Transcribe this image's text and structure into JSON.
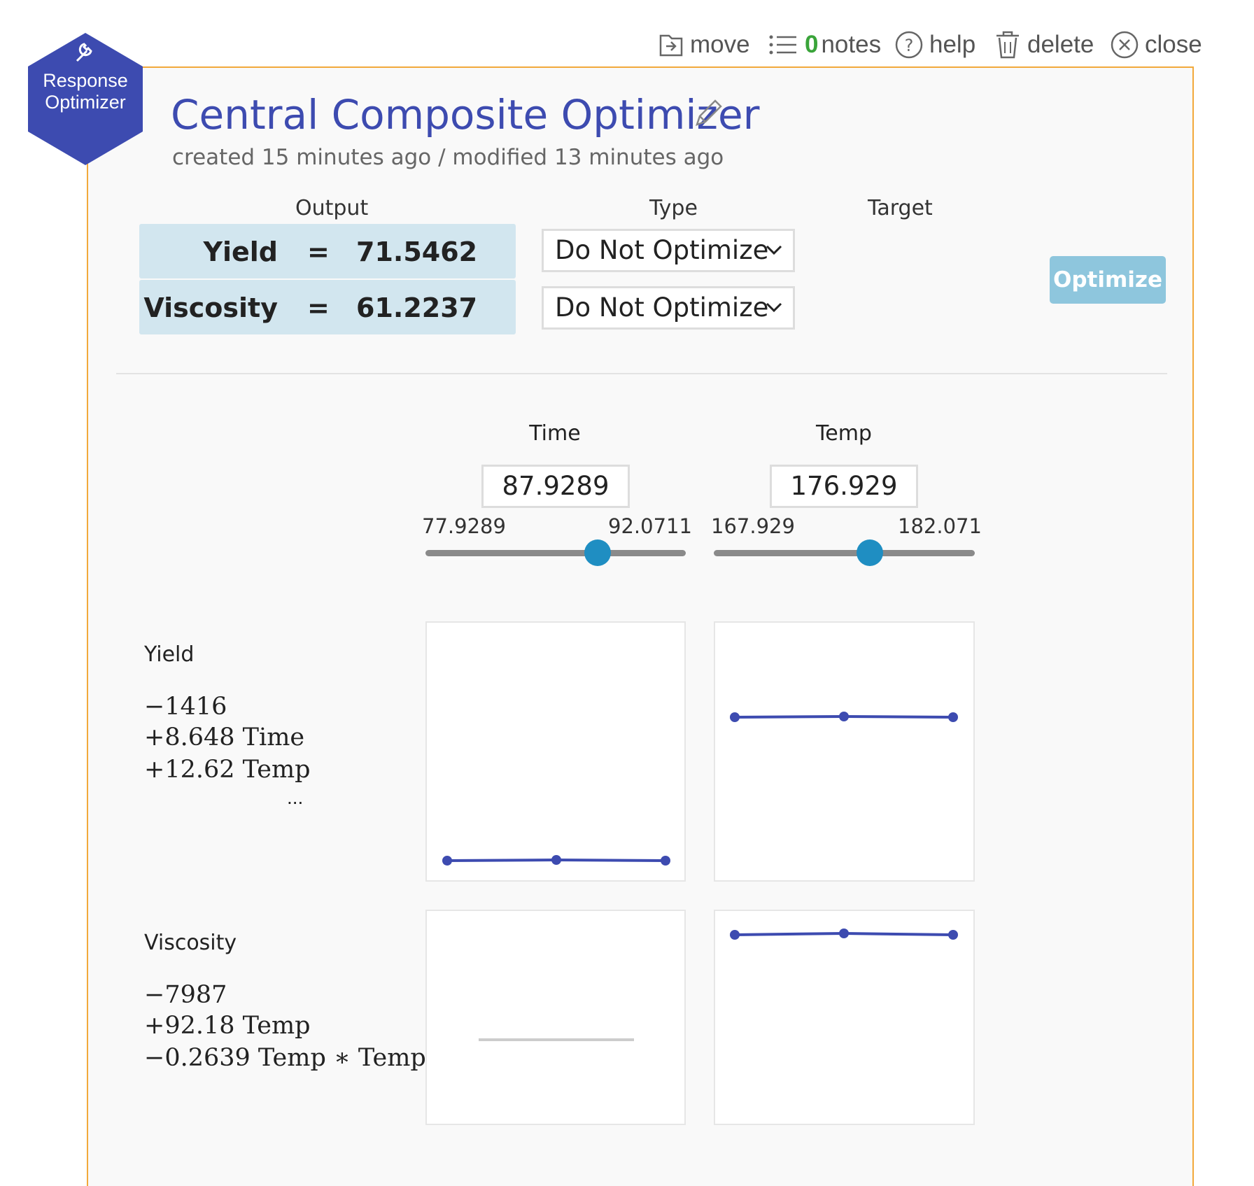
{
  "toolbar": {
    "move": "move",
    "notes_count": "0",
    "notes": "notes",
    "help": "help",
    "delete": "delete",
    "close": "close"
  },
  "badge": {
    "line1": "Response",
    "line2": "Optimizer"
  },
  "header": {
    "title": "Central Composite Optimizer",
    "subtitle": "created 15 minutes ago / modified 13 minutes ago"
  },
  "columns": {
    "output": "Output",
    "type": "Type",
    "target": "Target"
  },
  "outputs": [
    {
      "name": "Yield",
      "eq": "=",
      "value": "71.5462",
      "type": "Do Not Optimize"
    },
    {
      "name": "Viscosity",
      "eq": "=",
      "value": "61.2237",
      "type": "Do Not Optimize"
    }
  ],
  "optimize_label": "Optimize",
  "factors": [
    {
      "name": "Time",
      "value": "87.9289",
      "min": "77.9289",
      "max": "92.0711",
      "position": 0.66
    },
    {
      "name": "Temp",
      "value": "176.929",
      "min": "167.929",
      "max": "182.071",
      "position": 0.6
    }
  ],
  "responses": [
    {
      "name": "Yield",
      "terms": [
        "−1416",
        "+8.648 Time",
        "+12.62 Temp"
      ],
      "more": "..."
    },
    {
      "name": "Viscosity",
      "terms": [
        "−7987",
        "+92.18 Temp",
        "−0.2639 Temp ∗ Temp"
      ]
    }
  ],
  "colors": {
    "accent": "#3d4bb0",
    "panel_border": "#f2a93b",
    "slider": "#1f8ec2",
    "output_bg": "#d2e6ef",
    "button": "#8ec6dd",
    "plot_line": "#3d4bb0"
  }
}
